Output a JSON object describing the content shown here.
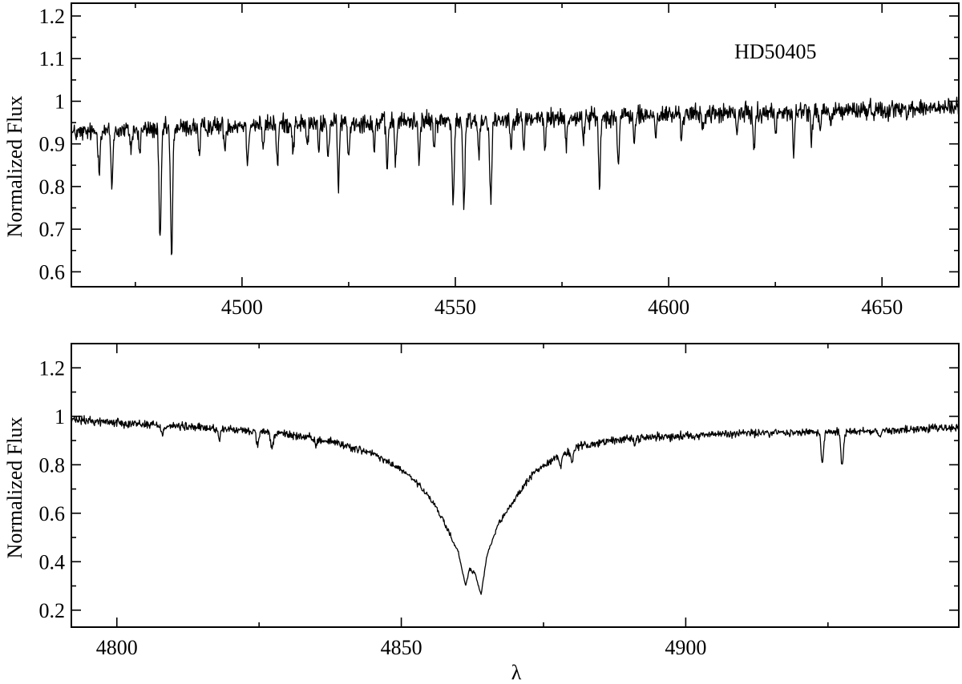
{
  "chart_data": [
    {
      "type": "line",
      "title": "",
      "xlabel": "",
      "ylabel": "Normalized Flux",
      "annotation": "HD50405",
      "xlim": [
        4460,
        4668
      ],
      "ylim": [
        0.565,
        1.23
      ],
      "x_major_ticks": [
        4500,
        4550,
        4600,
        4650
      ],
      "x_minor_ticks": [
        4475,
        4525,
        4575,
        4625
      ],
      "y_major_ticks": [
        0.6,
        0.7,
        0.8,
        0.9,
        1.0,
        1.1,
        1.2
      ],
      "y_minor_ticks": [
        0.65,
        0.75,
        0.85,
        0.95,
        1.05,
        1.15
      ],
      "x_tick_labels": [
        "4500",
        "4550",
        "4600",
        "4650"
      ],
      "y_tick_labels": [
        "0.6",
        "0.7",
        "0.8",
        "0.9",
        "1",
        "1.1",
        "1.2"
      ],
      "grid": false,
      "continuum": {
        "x": [
          4460,
          4500,
          4550,
          4600,
          4668
        ],
        "y": [
          0.925,
          0.945,
          0.955,
          0.968,
          0.985
        ]
      },
      "noise_amplitude": 0.022,
      "absorption_lines": [
        {
          "x": 4466.5,
          "depth": 0.09,
          "width": 0.22
        },
        {
          "x": 4469.5,
          "depth": 0.14,
          "width": 0.22
        },
        {
          "x": 4474.0,
          "depth": 0.05,
          "width": 0.2
        },
        {
          "x": 4476.0,
          "depth": 0.06,
          "width": 0.2
        },
        {
          "x": 4480.8,
          "depth": 0.29,
          "width": 0.25
        },
        {
          "x": 4483.5,
          "depth": 0.32,
          "width": 0.25
        },
        {
          "x": 4490.0,
          "depth": 0.08,
          "width": 0.2
        },
        {
          "x": 4496.0,
          "depth": 0.06,
          "width": 0.2
        },
        {
          "x": 4501.3,
          "depth": 0.09,
          "width": 0.22
        },
        {
          "x": 4505.0,
          "depth": 0.07,
          "width": 0.2
        },
        {
          "x": 4508.3,
          "depth": 0.1,
          "width": 0.22
        },
        {
          "x": 4512.0,
          "depth": 0.07,
          "width": 0.2
        },
        {
          "x": 4515.3,
          "depth": 0.06,
          "width": 0.2
        },
        {
          "x": 4518.0,
          "depth": 0.07,
          "width": 0.2
        },
        {
          "x": 4520.2,
          "depth": 0.08,
          "width": 0.22
        },
        {
          "x": 4522.6,
          "depth": 0.15,
          "width": 0.22
        },
        {
          "x": 4525.0,
          "depth": 0.09,
          "width": 0.2
        },
        {
          "x": 4531.0,
          "depth": 0.07,
          "width": 0.2
        },
        {
          "x": 4534.0,
          "depth": 0.12,
          "width": 0.22
        },
        {
          "x": 4536.0,
          "depth": 0.1,
          "width": 0.22
        },
        {
          "x": 4541.5,
          "depth": 0.09,
          "width": 0.2
        },
        {
          "x": 4545.0,
          "depth": 0.07,
          "width": 0.2
        },
        {
          "x": 4549.5,
          "depth": 0.2,
          "width": 0.25
        },
        {
          "x": 4552.0,
          "depth": 0.21,
          "width": 0.25
        },
        {
          "x": 4555.5,
          "depth": 0.09,
          "width": 0.2
        },
        {
          "x": 4558.3,
          "depth": 0.2,
          "width": 0.25
        },
        {
          "x": 4563.0,
          "depth": 0.06,
          "width": 0.2
        },
        {
          "x": 4566.0,
          "depth": 0.07,
          "width": 0.2
        },
        {
          "x": 4571.0,
          "depth": 0.08,
          "width": 0.2
        },
        {
          "x": 4576.0,
          "depth": 0.07,
          "width": 0.2
        },
        {
          "x": 4580.0,
          "depth": 0.06,
          "width": 0.2
        },
        {
          "x": 4583.8,
          "depth": 0.17,
          "width": 0.22
        },
        {
          "x": 4588.2,
          "depth": 0.12,
          "width": 0.22
        },
        {
          "x": 4592.0,
          "depth": 0.06,
          "width": 0.2
        },
        {
          "x": 4597.0,
          "depth": 0.05,
          "width": 0.2
        },
        {
          "x": 4603.0,
          "depth": 0.05,
          "width": 0.2
        },
        {
          "x": 4608.0,
          "depth": 0.04,
          "width": 0.2
        },
        {
          "x": 4616.0,
          "depth": 0.05,
          "width": 0.2
        },
        {
          "x": 4620.0,
          "depth": 0.09,
          "width": 0.22
        },
        {
          "x": 4625.0,
          "depth": 0.05,
          "width": 0.2
        },
        {
          "x": 4629.3,
          "depth": 0.1,
          "width": 0.22
        },
        {
          "x": 4633.5,
          "depth": 0.07,
          "width": 0.2
        },
        {
          "x": 4635.5,
          "depth": 0.06,
          "width": 0.2
        },
        {
          "x": 4638.0,
          "depth": 0.04,
          "width": 0.2
        }
      ]
    },
    {
      "type": "line",
      "title": "",
      "xlabel": "λ",
      "ylabel": "Normalized Flux",
      "xlim": [
        4792,
        4948
      ],
      "ylim": [
        0.13,
        1.3
      ],
      "x_major_ticks": [
        4800,
        4850,
        4900
      ],
      "x_minor_ticks": [
        4825,
        4875,
        4925
      ],
      "y_major_ticks": [
        0.2,
        0.4,
        0.6,
        0.8,
        1.0,
        1.2
      ],
      "y_minor_ticks": [
        0.3,
        0.5,
        0.7,
        0.9,
        1.1
      ],
      "x_tick_labels": [
        "4800",
        "4850",
        "4900"
      ],
      "y_tick_labels": [
        "0.2",
        "0.4",
        "0.6",
        "0.8",
        "1",
        "1.2"
      ],
      "grid": false,
      "profile_center": 4862.7,
      "profile": {
        "x": [
          4792,
          4800,
          4810,
          4820,
          4830,
          4838,
          4845,
          4850,
          4853,
          4856,
          4858,
          4860,
          4861.3,
          4862.0,
          4863.0,
          4864.0,
          4865,
          4867,
          4870,
          4873,
          4877,
          4882,
          4890,
          4900,
          4910,
          4925,
          4940,
          4948
        ],
        "y": [
          0.985,
          0.975,
          0.96,
          0.945,
          0.925,
          0.895,
          0.845,
          0.78,
          0.72,
          0.63,
          0.54,
          0.44,
          0.3,
          0.37,
          0.35,
          0.26,
          0.42,
          0.55,
          0.66,
          0.76,
          0.83,
          0.88,
          0.91,
          0.92,
          0.93,
          0.935,
          0.945,
          0.955
        ]
      },
      "noise_amplitude": 0.018,
      "absorption_lines": [
        {
          "x": 4808.0,
          "depth": 0.04,
          "width": 0.2
        },
        {
          "x": 4818.0,
          "depth": 0.04,
          "width": 0.2
        },
        {
          "x": 4824.8,
          "depth": 0.06,
          "width": 0.22
        },
        {
          "x": 4827.3,
          "depth": 0.07,
          "width": 0.22
        },
        {
          "x": 4835.0,
          "depth": 0.03,
          "width": 0.2
        },
        {
          "x": 4878.0,
          "depth": 0.05,
          "width": 0.25
        },
        {
          "x": 4880.0,
          "depth": 0.05,
          "width": 0.25
        },
        {
          "x": 4891.0,
          "depth": 0.03,
          "width": 0.2
        },
        {
          "x": 4924.0,
          "depth": 0.13,
          "width": 0.22
        },
        {
          "x": 4927.5,
          "depth": 0.15,
          "width": 0.22
        },
        {
          "x": 4934.0,
          "depth": 0.03,
          "width": 0.2
        }
      ]
    }
  ]
}
